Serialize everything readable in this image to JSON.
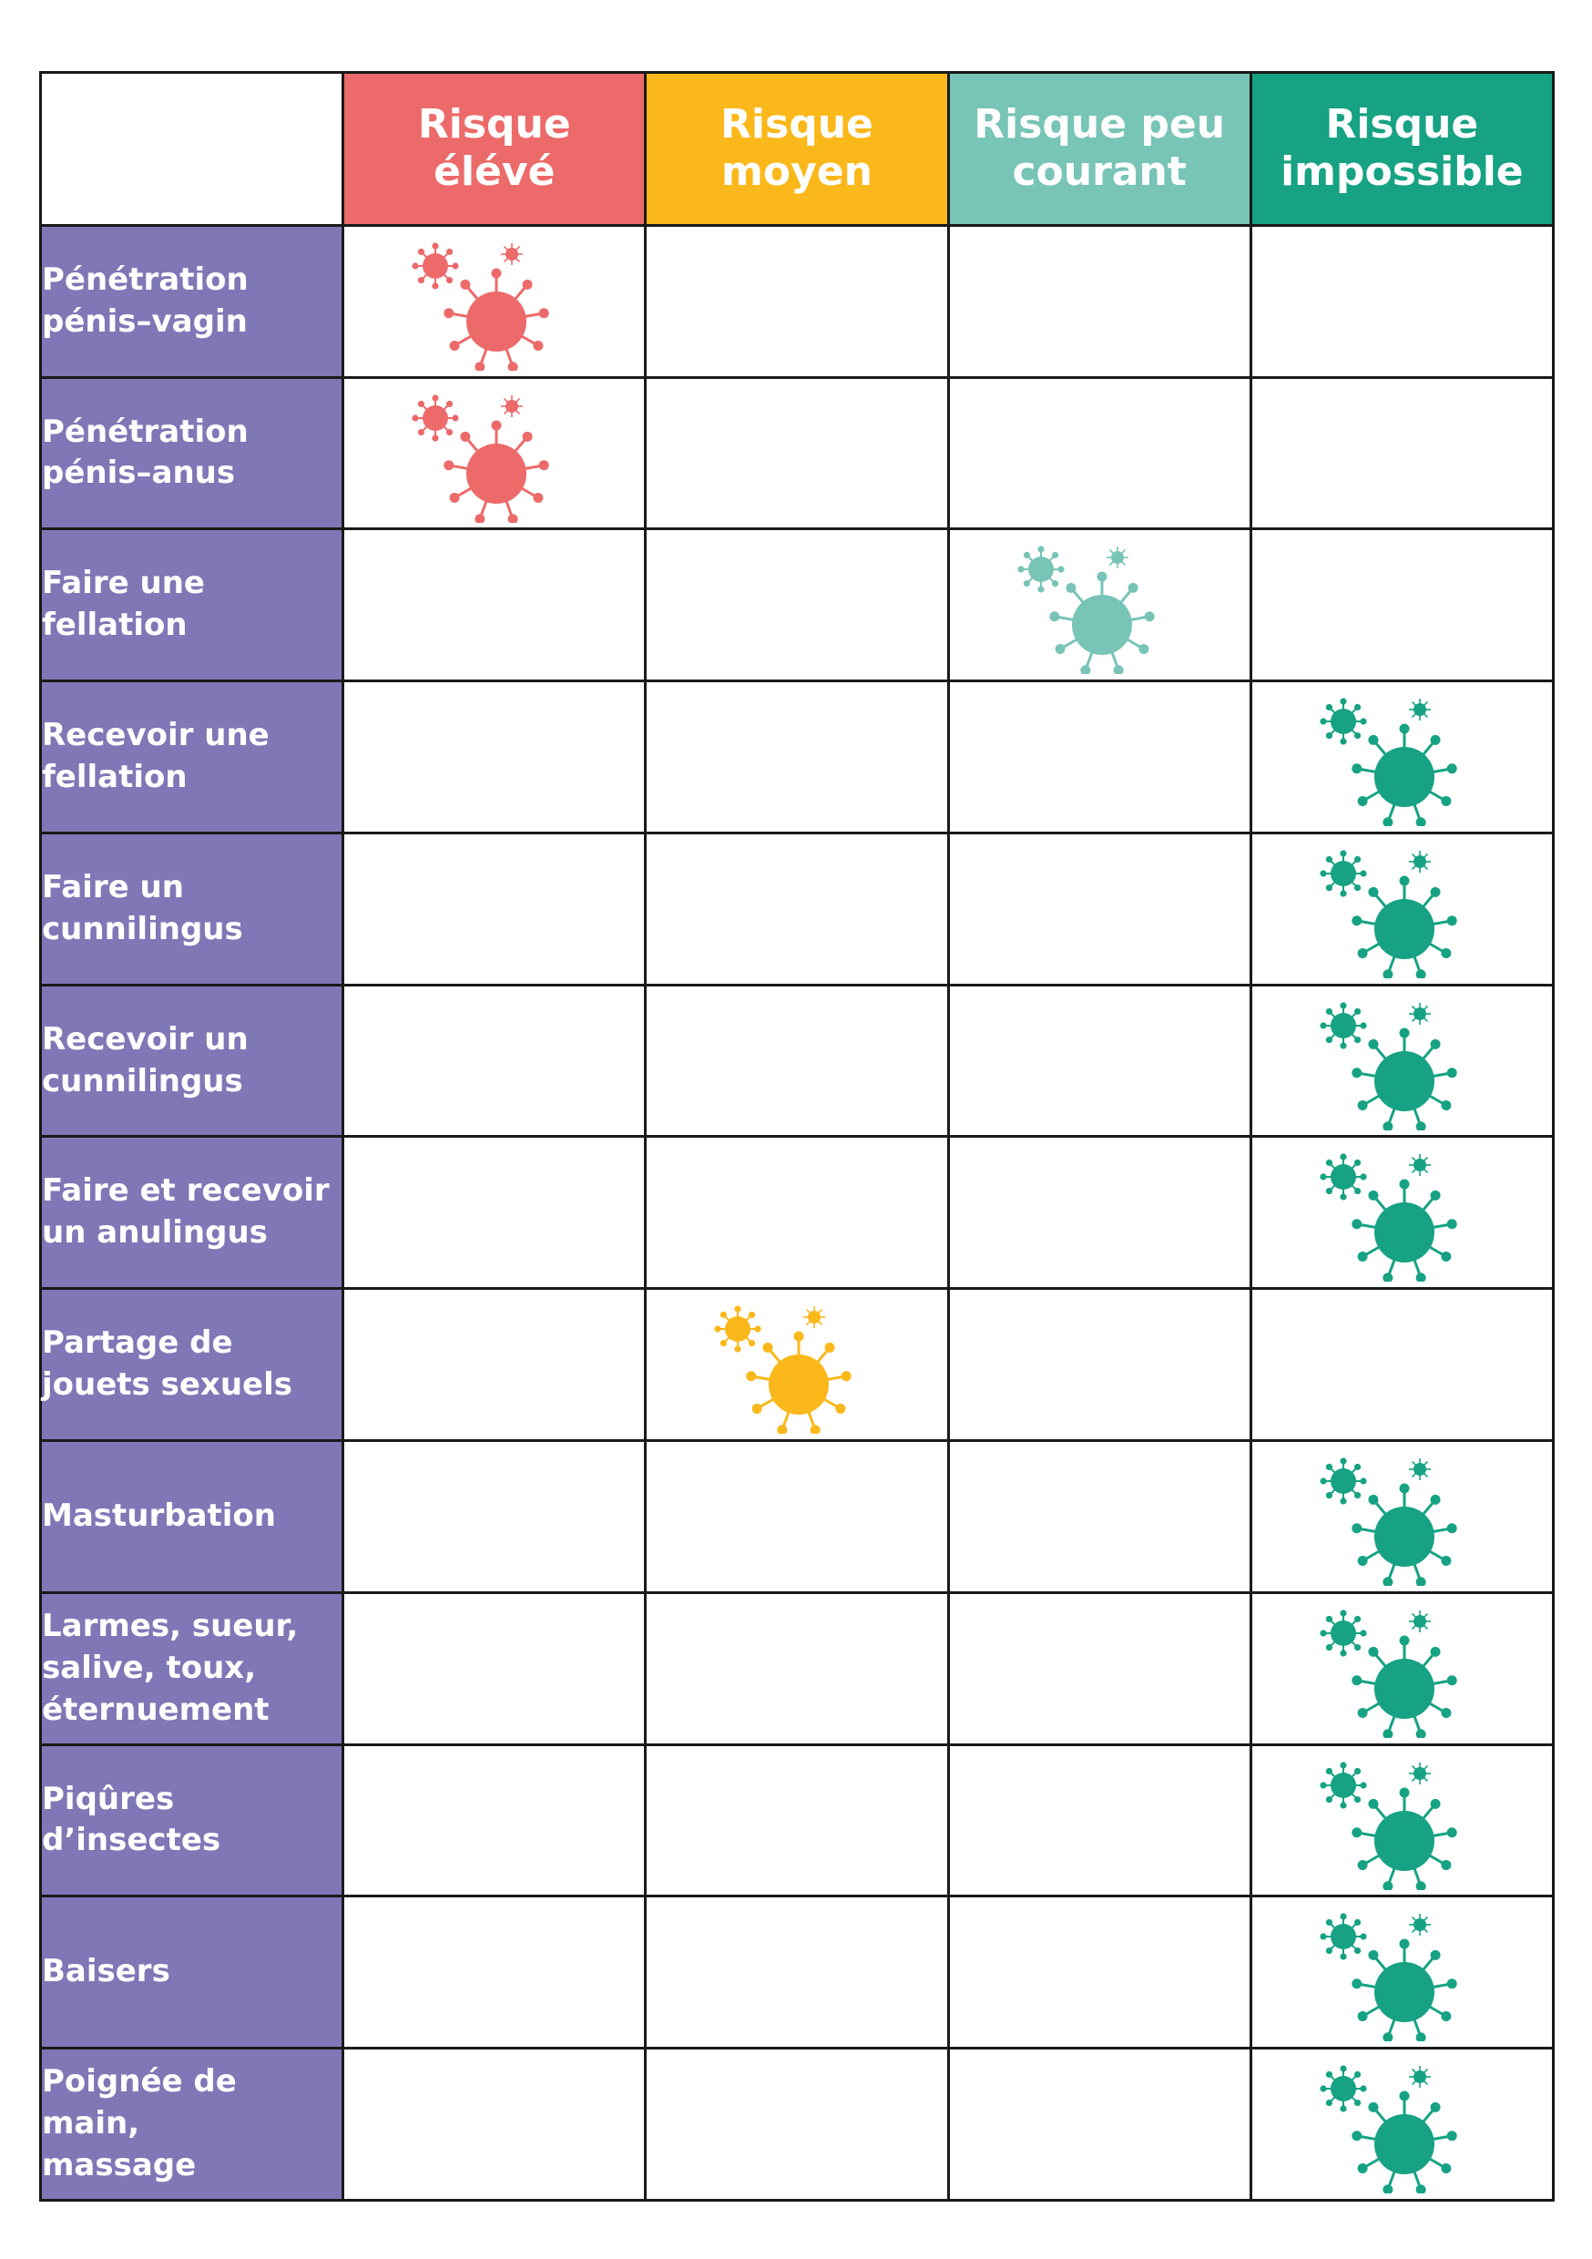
{
  "columns": [
    {
      "id": "eleve",
      "label_1": "Risque",
      "label_2": "élévé",
      "color": "#ec6a6a"
    },
    {
      "id": "moyen",
      "label_1": "Risque",
      "label_2": "moyen",
      "color": "#fbb81b"
    },
    {
      "id": "peu",
      "label_1": "Risque peu",
      "label_2": "courant",
      "color": "#78c4b6"
    },
    {
      "id": "impossible",
      "label_1": "Risque",
      "label_2": "impossible",
      "color": "#16a283"
    }
  ],
  "rows": [
    {
      "label_1": "Pénétration",
      "label_2": "pénis–vagin",
      "risk": 0
    },
    {
      "label_1": "Pénétration",
      "label_2": "pénis–anus",
      "risk": 0
    },
    {
      "label_1": "Faire une",
      "label_2": "fellation",
      "risk": 2
    },
    {
      "label_1": "Recevoir une",
      "label_2": "fellation",
      "risk": 3
    },
    {
      "label_1": "Faire un",
      "label_2": "cunnilingus",
      "risk": 3
    },
    {
      "label_1": "Recevoir un",
      "label_2": "cunnilingus",
      "risk": 3
    },
    {
      "label_1": "Faire et recevoir",
      "label_2": "un anulingus",
      "risk": 3
    },
    {
      "label_1": "Partage de",
      "label_2": "jouets sexuels",
      "risk": 1
    },
    {
      "label_1": "Masturbation",
      "risk": 3
    },
    {
      "label_1": "Larmes, sueur,",
      "label_2": "salive, toux,",
      "label_3": "éternuement",
      "risk": 3
    },
    {
      "label_1": "Piqûres",
      "label_2": "d’insectes",
      "risk": 3
    },
    {
      "label_1": "Baisers",
      "risk": 3
    },
    {
      "label_1": "Poignée de main,",
      "label_2": "massage",
      "risk": 3
    }
  ],
  "icon": "virus-icon"
}
